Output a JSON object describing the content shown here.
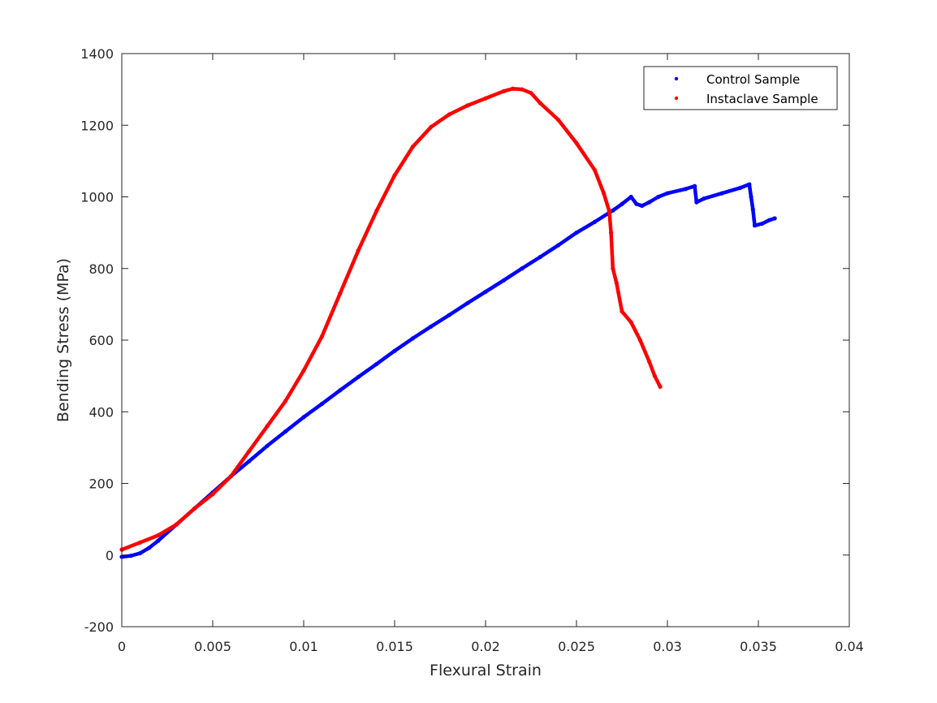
{
  "chart_data": {
    "type": "scatter",
    "title": "",
    "xlabel": "Flexural Strain",
    "ylabel": "Bending Stress (MPa)",
    "xlim": [
      0,
      0.04
    ],
    "ylim": [
      -200,
      1400
    ],
    "xticks": [
      0,
      0.005,
      0.01,
      0.015,
      0.02,
      0.025,
      0.03,
      0.035,
      0.04
    ],
    "xtick_labels": [
      "0",
      "0.005",
      "0.01",
      "0.015",
      "0.02",
      "0.025",
      "0.03",
      "0.035",
      "0.04"
    ],
    "yticks": [
      -200,
      0,
      200,
      400,
      600,
      800,
      1000,
      1200,
      1400
    ],
    "ytick_labels": [
      "-200",
      "0",
      "200",
      "400",
      "600",
      "800",
      "1000",
      "1200",
      "1400"
    ],
    "grid": false,
    "legend_position": "top-right",
    "series": [
      {
        "name": "Control Sample",
        "color": "#0000ff",
        "points": [
          [
            0.0,
            -5
          ],
          [
            0.0005,
            -2
          ],
          [
            0.001,
            5
          ],
          [
            0.0015,
            20
          ],
          [
            0.002,
            40
          ],
          [
            0.003,
            85
          ],
          [
            0.004,
            130
          ],
          [
            0.005,
            175
          ],
          [
            0.006,
            220
          ],
          [
            0.007,
            262
          ],
          [
            0.008,
            305
          ],
          [
            0.009,
            345
          ],
          [
            0.01,
            385
          ],
          [
            0.011,
            422
          ],
          [
            0.012,
            460
          ],
          [
            0.013,
            497
          ],
          [
            0.014,
            533
          ],
          [
            0.015,
            570
          ],
          [
            0.016,
            605
          ],
          [
            0.017,
            638
          ],
          [
            0.018,
            670
          ],
          [
            0.019,
            703
          ],
          [
            0.02,
            735
          ],
          [
            0.021,
            767
          ],
          [
            0.022,
            800
          ],
          [
            0.023,
            832
          ],
          [
            0.024,
            865
          ],
          [
            0.025,
            900
          ],
          [
            0.026,
            930
          ],
          [
            0.027,
            962
          ],
          [
            0.0275,
            980
          ],
          [
            0.028,
            1000
          ],
          [
            0.0283,
            980
          ],
          [
            0.0286,
            975
          ],
          [
            0.029,
            985
          ],
          [
            0.0295,
            1000
          ],
          [
            0.03,
            1010
          ],
          [
            0.031,
            1022
          ],
          [
            0.0315,
            1030
          ],
          [
            0.0316,
            985
          ],
          [
            0.032,
            995
          ],
          [
            0.033,
            1010
          ],
          [
            0.034,
            1025
          ],
          [
            0.0345,
            1035
          ],
          [
            0.0346,
            1000
          ],
          [
            0.0347,
            965
          ],
          [
            0.0348,
            920
          ],
          [
            0.0352,
            925
          ],
          [
            0.0356,
            935
          ],
          [
            0.0359,
            940
          ]
        ]
      },
      {
        "name": "Instaclave Sample",
        "color": "#ff0000",
        "points": [
          [
            0.0,
            15
          ],
          [
            0.001,
            35
          ],
          [
            0.002,
            55
          ],
          [
            0.003,
            85
          ],
          [
            0.004,
            130
          ],
          [
            0.005,
            170
          ],
          [
            0.006,
            220
          ],
          [
            0.007,
            290
          ],
          [
            0.008,
            360
          ],
          [
            0.009,
            430
          ],
          [
            0.01,
            515
          ],
          [
            0.011,
            610
          ],
          [
            0.012,
            730
          ],
          [
            0.013,
            850
          ],
          [
            0.014,
            960
          ],
          [
            0.015,
            1060
          ],
          [
            0.016,
            1140
          ],
          [
            0.017,
            1195
          ],
          [
            0.018,
            1230
          ],
          [
            0.019,
            1255
          ],
          [
            0.02,
            1275
          ],
          [
            0.021,
            1295
          ],
          [
            0.0215,
            1302
          ],
          [
            0.022,
            1300
          ],
          [
            0.0225,
            1290
          ],
          [
            0.023,
            1262
          ],
          [
            0.024,
            1215
          ],
          [
            0.025,
            1150
          ],
          [
            0.026,
            1075
          ],
          [
            0.0265,
            1010
          ],
          [
            0.0268,
            960
          ],
          [
            0.0269,
            900
          ],
          [
            0.027,
            800
          ],
          [
            0.0272,
            760
          ],
          [
            0.0275,
            680
          ],
          [
            0.028,
            650
          ],
          [
            0.0285,
            600
          ],
          [
            0.029,
            540
          ],
          [
            0.0293,
            500
          ],
          [
            0.0296,
            470
          ]
        ]
      }
    ]
  }
}
